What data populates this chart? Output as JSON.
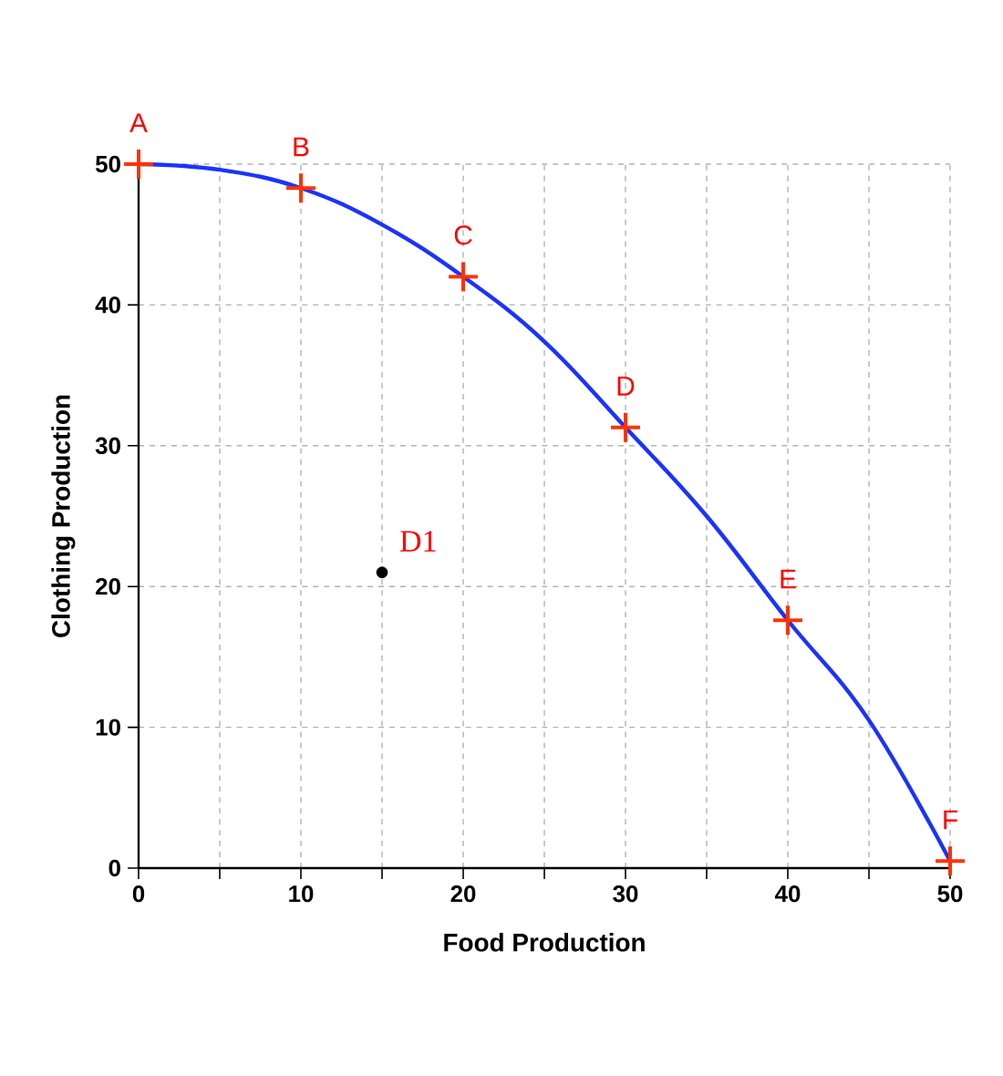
{
  "chart_data": {
    "type": "line",
    "xlabel": "Food Production",
    "ylabel": "Clothing Production",
    "xlim": [
      0,
      50
    ],
    "ylim": [
      0,
      50
    ],
    "xticks": [
      0,
      {
        "value": 5,
        "label": null
      },
      10,
      {
        "value": 15,
        "label": null
      },
      20,
      {
        "value": 25,
        "label": null
      },
      30,
      {
        "value": 35,
        "label": null
      },
      40,
      {
        "value": 45,
        "label": null
      },
      50
    ],
    "yticks": [
      0,
      10,
      20,
      30,
      40,
      50
    ],
    "grid": true,
    "series": [
      {
        "color": "#1a33ff",
        "marker": "none",
        "x": [
          0,
          5,
          10,
          15,
          20,
          25,
          30,
          35,
          40,
          45,
          50
        ],
        "values": [
          50,
          49.6,
          48.3,
          45.7,
          42,
          37.4,
          31.3,
          25,
          17.6,
          10.5,
          0.5
        ]
      },
      {
        "type": "scatter",
        "color": "#ff3300",
        "marker": "cross",
        "x": [
          0,
          10,
          20,
          30,
          40,
          50
        ],
        "values": [
          50,
          48.3,
          42,
          31.3,
          17.6,
          0.5
        ]
      },
      {
        "type": "scatter",
        "color": "#000000",
        "marker": "circle",
        "x": [
          15
        ],
        "values": [
          21
        ]
      }
    ],
    "annotations": [
      {
        "text": "A",
        "x": 0,
        "y": 50
      },
      {
        "text": "B",
        "x": 10,
        "y": 48.3
      },
      {
        "text": "C",
        "x": 20,
        "y": 42
      },
      {
        "text": "D",
        "x": 30,
        "y": 31.3
      },
      {
        "text": "E",
        "x": 40,
        "y": 17.6
      },
      {
        "text": "F",
        "x": 50,
        "y": 0.5
      },
      {
        "text": "D1",
        "x": 15,
        "y": 21
      }
    ]
  }
}
